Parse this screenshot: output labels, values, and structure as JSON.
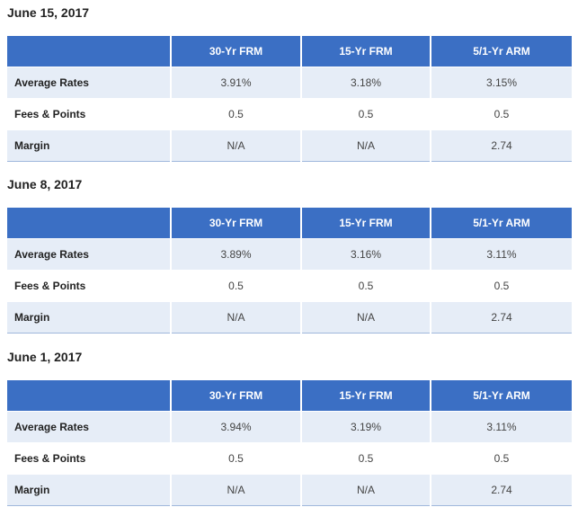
{
  "columns": [
    "",
    "30-Yr FRM",
    "15-Yr FRM",
    "5/1-Yr ARM"
  ],
  "tables": [
    {
      "date": "June 15, 2017",
      "rows": [
        {
          "label": "Average Rates",
          "values": [
            "3.91%",
            "3.18%",
            "3.15%"
          ]
        },
        {
          "label": "Fees & Points",
          "values": [
            "0.5",
            "0.5",
            "0.5"
          ]
        },
        {
          "label": "Margin",
          "values": [
            "N/A",
            "N/A",
            "2.74"
          ]
        }
      ]
    },
    {
      "date": "June 8, 2017",
      "rows": [
        {
          "label": "Average Rates",
          "values": [
            "3.89%",
            "3.16%",
            "3.11%"
          ]
        },
        {
          "label": "Fees & Points",
          "values": [
            "0.5",
            "0.5",
            "0.5"
          ]
        },
        {
          "label": "Margin",
          "values": [
            "N/A",
            "N/A",
            "2.74"
          ]
        }
      ]
    },
    {
      "date": "June 1, 2017",
      "rows": [
        {
          "label": "Average Rates",
          "values": [
            "3.94%",
            "3.19%",
            "3.11%"
          ]
        },
        {
          "label": "Fees & Points",
          "values": [
            "0.5",
            "0.5",
            "0.5"
          ]
        },
        {
          "label": "Margin",
          "values": [
            "N/A",
            "N/A",
            "2.74"
          ]
        }
      ]
    }
  ],
  "colors": {
    "header_bg": "#3b6fc4",
    "row_shade": "#e6edf7"
  }
}
